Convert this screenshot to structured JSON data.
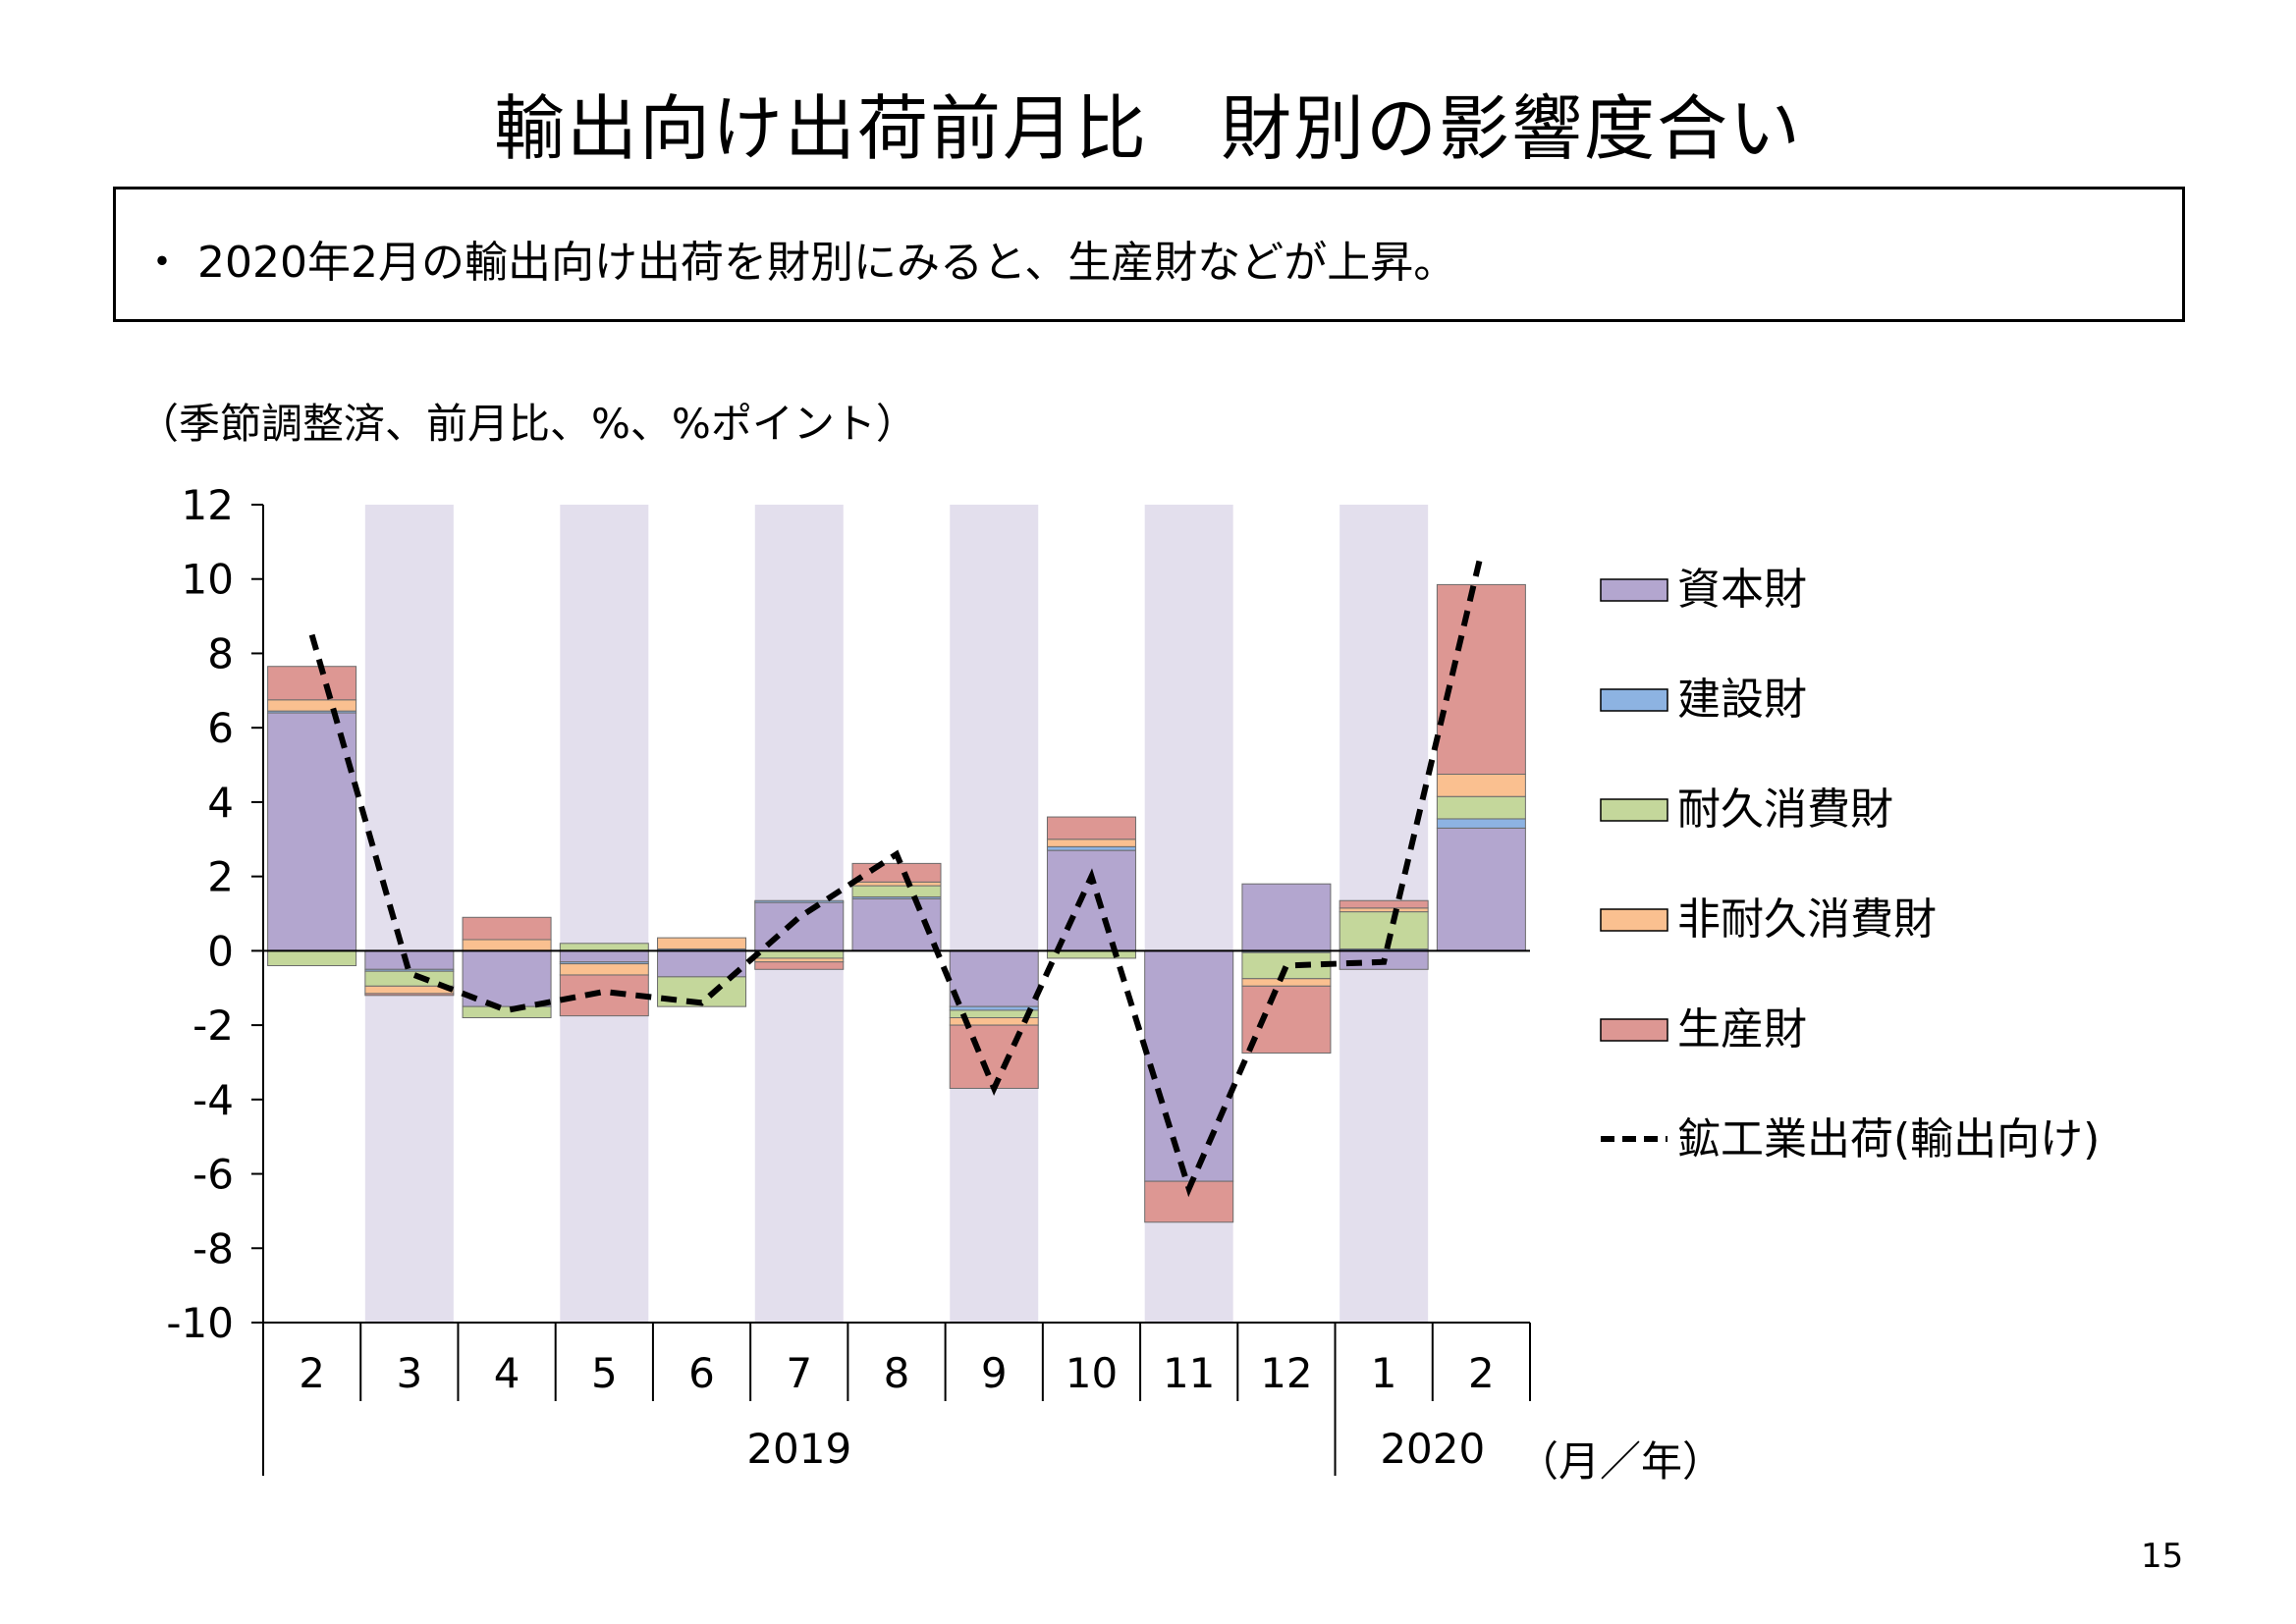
{
  "title": "輸出向け出荷前月比　財別の影響度合い",
  "summary": "・ 2020年2月の輸出向け出荷を財別にみると、生産財などが上昇。",
  "unit_note": "（季節調整済、前月比、%、%ポイント）",
  "page_number": "15",
  "axis_unit_label": "（月／年）",
  "colors": {
    "shade": "#e3dfed",
    "capital": "#b3a6cf",
    "construction": "#8db3e2",
    "durable": "#c4d79b",
    "nondurable": "#fac090",
    "production": "#dd9793",
    "total": "#000000"
  },
  "chart_data": {
    "type": "bar",
    "stacked": true,
    "ylim": [
      -10,
      12
    ],
    "y_ticks": [
      "12",
      "10",
      "8",
      "6",
      "4",
      "2",
      "0",
      "-2",
      "-4",
      "-6",
      "-8",
      "-10"
    ],
    "categories": [
      "2",
      "3",
      "4",
      "5",
      "6",
      "7",
      "8",
      "9",
      "10",
      "11",
      "12",
      "1",
      "2"
    ],
    "years": [
      {
        "label": "2019",
        "start": 0,
        "end": 10
      },
      {
        "label": "2020",
        "start": 11,
        "end": 12
      }
    ],
    "shaded_categories": [
      1,
      3,
      5,
      7,
      9,
      11
    ],
    "series": [
      {
        "name": "資本財",
        "color_key": "capital",
        "values": [
          6.4,
          -0.5,
          -1.5,
          -0.3,
          -0.7,
          1.3,
          1.4,
          -1.5,
          2.7,
          -6.2,
          1.8,
          -0.5,
          3.3
        ]
      },
      {
        "name": "建設財",
        "color_key": "construction",
        "values": [
          0.05,
          -0.05,
          0.0,
          -0.05,
          0.05,
          0.05,
          0.05,
          -0.1,
          0.1,
          0.0,
          -0.05,
          0.05,
          0.25
        ]
      },
      {
        "name": "耐久消費財",
        "color_key": "durable",
        "values": [
          -0.4,
          -0.4,
          -0.3,
          0.2,
          -0.8,
          -0.2,
          0.3,
          -0.2,
          -0.2,
          0.0,
          -0.7,
          1.0,
          0.6
        ]
      },
      {
        "name": "非耐久消費財",
        "color_key": "nondurable",
        "values": [
          0.3,
          -0.2,
          0.3,
          -0.3,
          0.3,
          -0.1,
          0.1,
          -0.2,
          0.2,
          0.0,
          -0.2,
          0.1,
          0.6
        ]
      },
      {
        "name": "生産財",
        "color_key": "production",
        "values": [
          0.9,
          -0.05,
          0.6,
          -1.1,
          0.0,
          -0.2,
          0.5,
          -1.7,
          0.6,
          -1.1,
          -1.8,
          0.2,
          5.1
        ]
      }
    ],
    "line": {
      "name": "鉱工業出荷(輸出向け)",
      "values": [
        8.5,
        -0.6,
        -1.6,
        -1.1,
        -1.4,
        0.9,
        2.6,
        -3.7,
        2.0,
        -6.4,
        -0.4,
        -0.3,
        10.7
      ]
    },
    "legend_position": "right"
  }
}
